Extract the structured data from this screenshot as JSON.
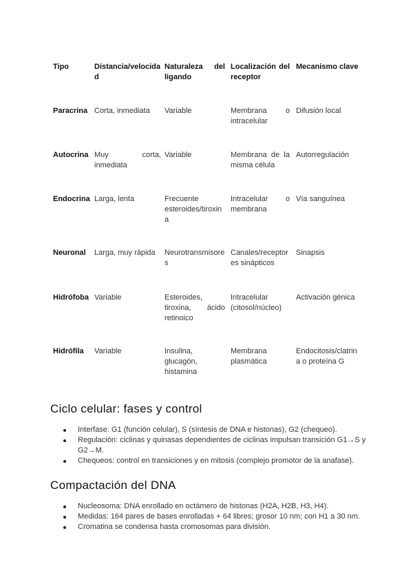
{
  "table": {
    "headers": [
      "Tipo",
      "Distancia/velocidad",
      "Naturaleza del ligando",
      "Localización del receptor",
      "Mecanismo clave"
    ],
    "rows": [
      [
        "Paracrina",
        "Corta, inmediata",
        "Variable",
        "Membrana o intracelular",
        "Difusión local"
      ],
      [
        "Autocrina",
        "Muy corta, inmediata",
        "Variable",
        "Membrana de la misma célula",
        "Autorregulación"
      ],
      [
        "Endocrina",
        "Larga, lenta",
        "Frecuente esteroides/tiroxina",
        "Intracelular o membrana",
        "Vía sanguínea"
      ],
      [
        "Neuronal",
        "Larga, muy rápida",
        "Neurotransmisores",
        "Canales/receptores sinápticos",
        "Sinapsis"
      ],
      [
        "Hidrófoba",
        "Variable",
        "Esteroides, tiroxina, ácido retinoico",
        "Intracelular (citosol/núcleo)",
        "Activación génica"
      ],
      [
        "Hidrófila",
        "Variable",
        "Insulina, glucagón, histamina",
        "Membrana plasmática",
        "Endocitosis/clatrina o proteína G"
      ]
    ]
  },
  "sections": [
    {
      "title": "Ciclo celular: fases y control",
      "bullets": [
        "Interfase: G1 (función celular), S (síntesis de DNA e histonas), G2 (chequeo).",
        "Regulación: ciclinas y quinasas dependientes de ciclinas impulsan transición G1→S y G2→M.",
        "Chequeos: control en transiciones y en mitosis (complejo promotor de la anafase)."
      ]
    },
    {
      "title": "Compactación del DNA",
      "bullets": [
        "Nucleosoma: DNA enrollado en octámero de histonas (H2A, H2B, H3, H4).",
        "Medidas: 164 pares de bases enrolladas + 64 libres; grosor 10 nm; con H1 a 30 nm.",
        "Cromatina se condensa hasta cromosomas para división."
      ]
    }
  ]
}
